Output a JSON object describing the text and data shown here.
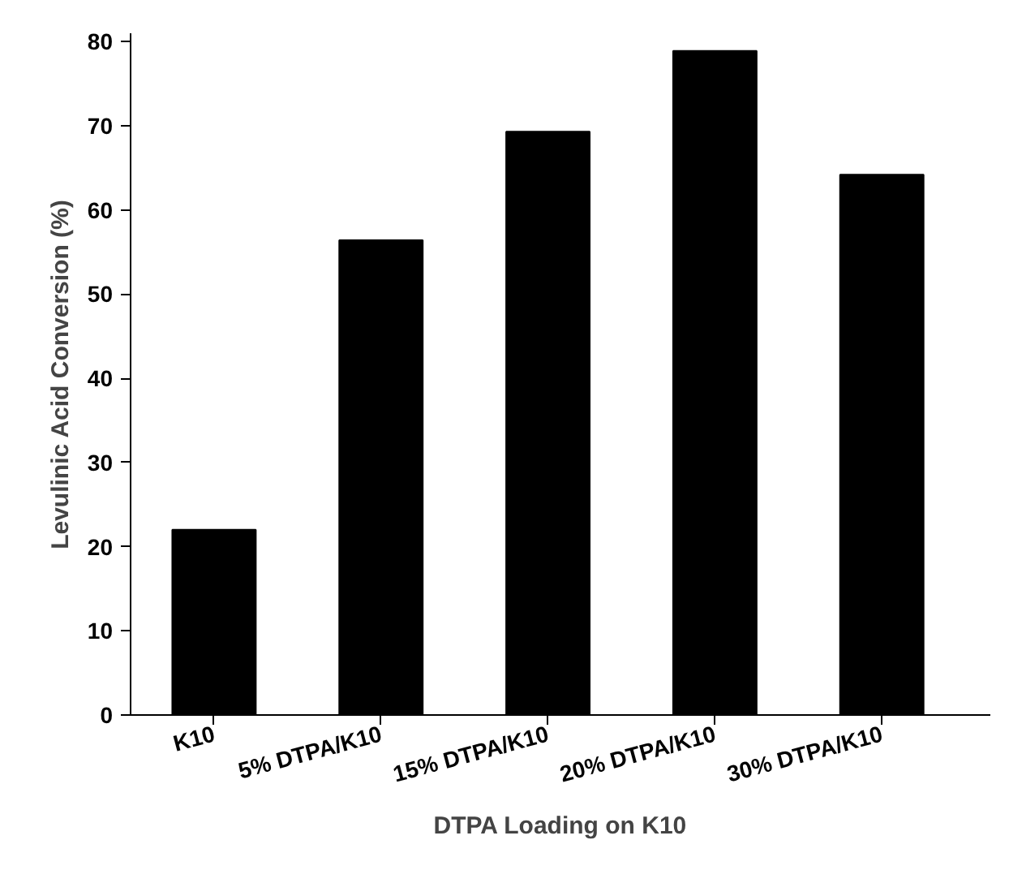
{
  "chart_data": {
    "type": "bar",
    "xlabel": "DTPA Loading on K10",
    "ylabel": "Levulinic Acid Conversion (%)",
    "categories": [
      "K10",
      "5% DTPA/K10",
      "15% DTPA/K10",
      "20% DTPA/K10",
      "30% DTPA/K10"
    ],
    "values": [
      22,
      56.4,
      69.3,
      78.9,
      64.2
    ],
    "color": "#000000",
    "ylim": [
      0,
      81
    ],
    "yticks": [
      0,
      10,
      20,
      30,
      40,
      50,
      60,
      70,
      80
    ],
    "grid": false
  }
}
